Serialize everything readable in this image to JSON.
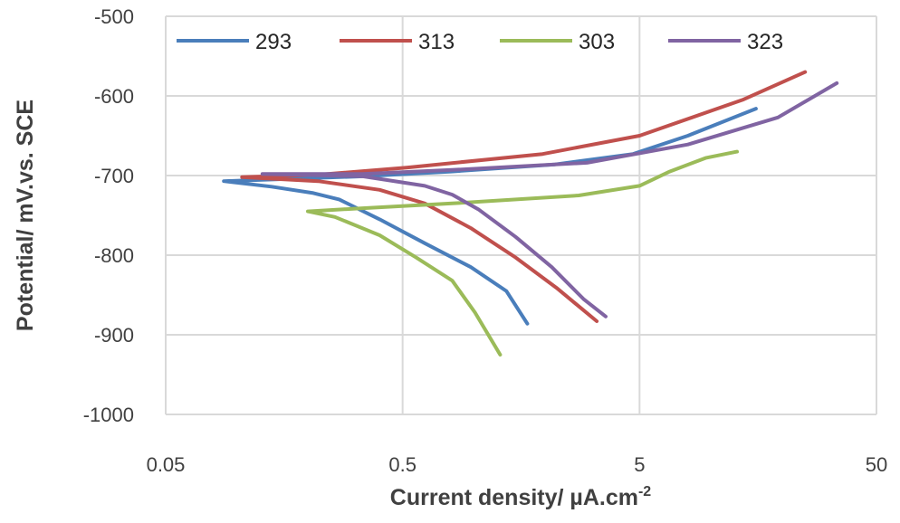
{
  "chart_data": {
    "type": "line",
    "title": "",
    "xlabel": "Current density/ µA.cm",
    "xlabel_superscript": "-2",
    "ylabel": "Potential/ mV.vs. SCE",
    "xscale": "log",
    "xlim": [
      0.05,
      50
    ],
    "ylim": [
      -1000,
      -500
    ],
    "xticks": [
      "0.05",
      "0.5",
      "5",
      "50"
    ],
    "xtick_values": [
      0.05,
      0.5,
      5,
      50
    ],
    "yticks": [
      "-500",
      "-600",
      "-700",
      "-800",
      "-900",
      "-1000"
    ],
    "ytick_values": [
      -500,
      -600,
      -700,
      -800,
      -900,
      -1000
    ],
    "grid": true,
    "legend_position": "top",
    "series": [
      {
        "name": "293",
        "color": "#4a7ebb",
        "points": [
          [
            15.5,
            -616
          ],
          [
            8,
            -650
          ],
          [
            4.7,
            -673
          ],
          [
            2.2,
            -686
          ],
          [
            0.8,
            -695
          ],
          [
            0.34,
            -701
          ],
          [
            0.14,
            -705
          ],
          [
            0.088,
            -707
          ],
          [
            0.14,
            -714
          ],
          [
            0.21,
            -722
          ],
          [
            0.27,
            -730
          ],
          [
            0.4,
            -755
          ],
          [
            0.62,
            -785
          ],
          [
            0.97,
            -815
          ],
          [
            1.37,
            -845
          ],
          [
            1.68,
            -886
          ]
        ]
      },
      {
        "name": "313",
        "color": "#c0504d",
        "points": [
          [
            25,
            -570
          ],
          [
            13.6,
            -605
          ],
          [
            5,
            -650
          ],
          [
            1.95,
            -673
          ],
          [
            0.52,
            -690
          ],
          [
            0.22,
            -699
          ],
          [
            0.105,
            -702
          ],
          [
            0.22,
            -707
          ],
          [
            0.4,
            -718
          ],
          [
            0.62,
            -735
          ],
          [
            0.97,
            -766
          ],
          [
            1.5,
            -803
          ],
          [
            2.23,
            -841
          ],
          [
            3.3,
            -883
          ]
        ]
      },
      {
        "name": "303",
        "color": "#9bbb59",
        "points": [
          [
            12.9,
            -670
          ],
          [
            9.5,
            -678
          ],
          [
            6.7,
            -695
          ],
          [
            5,
            -713
          ],
          [
            2.77,
            -725
          ],
          [
            0.81,
            -735
          ],
          [
            0.34,
            -741
          ],
          [
            0.199,
            -745
          ],
          [
            0.259,
            -752
          ],
          [
            0.4,
            -775
          ],
          [
            0.57,
            -803
          ],
          [
            0.81,
            -832
          ],
          [
            1.01,
            -872
          ],
          [
            1.29,
            -925
          ]
        ]
      },
      {
        "name": "323",
        "color": "#8064a2",
        "points": [
          [
            34,
            -584
          ],
          [
            19.2,
            -627
          ],
          [
            8,
            -661
          ],
          [
            3,
            -684
          ],
          [
            0.81,
            -693
          ],
          [
            0.34,
            -698
          ],
          [
            0.128,
            -698
          ],
          [
            0.34,
            -701
          ],
          [
            0.62,
            -713
          ],
          [
            0.81,
            -724
          ],
          [
            1.05,
            -743
          ],
          [
            1.5,
            -777
          ],
          [
            2.13,
            -815
          ],
          [
            2.9,
            -855
          ],
          [
            3.6,
            -877
          ]
        ]
      }
    ]
  }
}
